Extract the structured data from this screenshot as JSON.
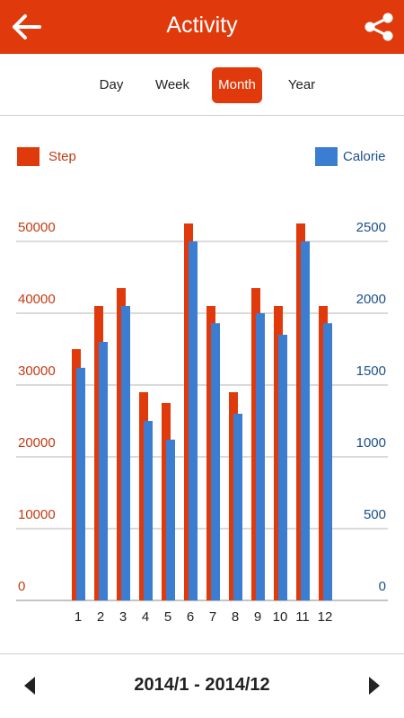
{
  "header": {
    "title": "Activity",
    "back_icon": "arrow-left-icon",
    "share_icon": "share-icon",
    "color": "#e03a0c"
  },
  "tabs": [
    {
      "label": "Day",
      "active": false
    },
    {
      "label": "Week",
      "active": false
    },
    {
      "label": "Month",
      "active": true
    },
    {
      "label": "Year",
      "active": false
    }
  ],
  "legend": {
    "step_label": "Step",
    "calorie_label": "Calorie",
    "step_color": "#e03a0c",
    "calorie_color": "#3a7dd1"
  },
  "footer": {
    "range": "2014/1 - 2014/12",
    "prev_icon": "triangle-left-icon",
    "next_icon": "triangle-right-icon"
  },
  "chart_data": {
    "type": "bar",
    "categories": [
      "1",
      "2",
      "3",
      "4",
      "5",
      "6",
      "7",
      "8",
      "9",
      "10",
      "11",
      "12"
    ],
    "series": [
      {
        "name": "Step",
        "axis": "left",
        "values": [
          35000,
          41000,
          43500,
          29000,
          27500,
          52500,
          41000,
          29000,
          43500,
          41000,
          52500,
          41000
        ]
      },
      {
        "name": "Calorie",
        "axis": "right",
        "values": [
          1620,
          1800,
          2050,
          1250,
          1120,
          2500,
          1930,
          1300,
          2000,
          1850,
          2500,
          1930
        ]
      }
    ],
    "y_left": {
      "ticks": [
        "0",
        "10000",
        "20000",
        "30000",
        "40000",
        "50000"
      ],
      "range": [
        0,
        50000
      ]
    },
    "y_right": {
      "ticks": [
        "0",
        "500",
        "1000",
        "1500",
        "2000",
        "2500"
      ],
      "range": [
        0,
        2500
      ]
    },
    "grid": true
  }
}
